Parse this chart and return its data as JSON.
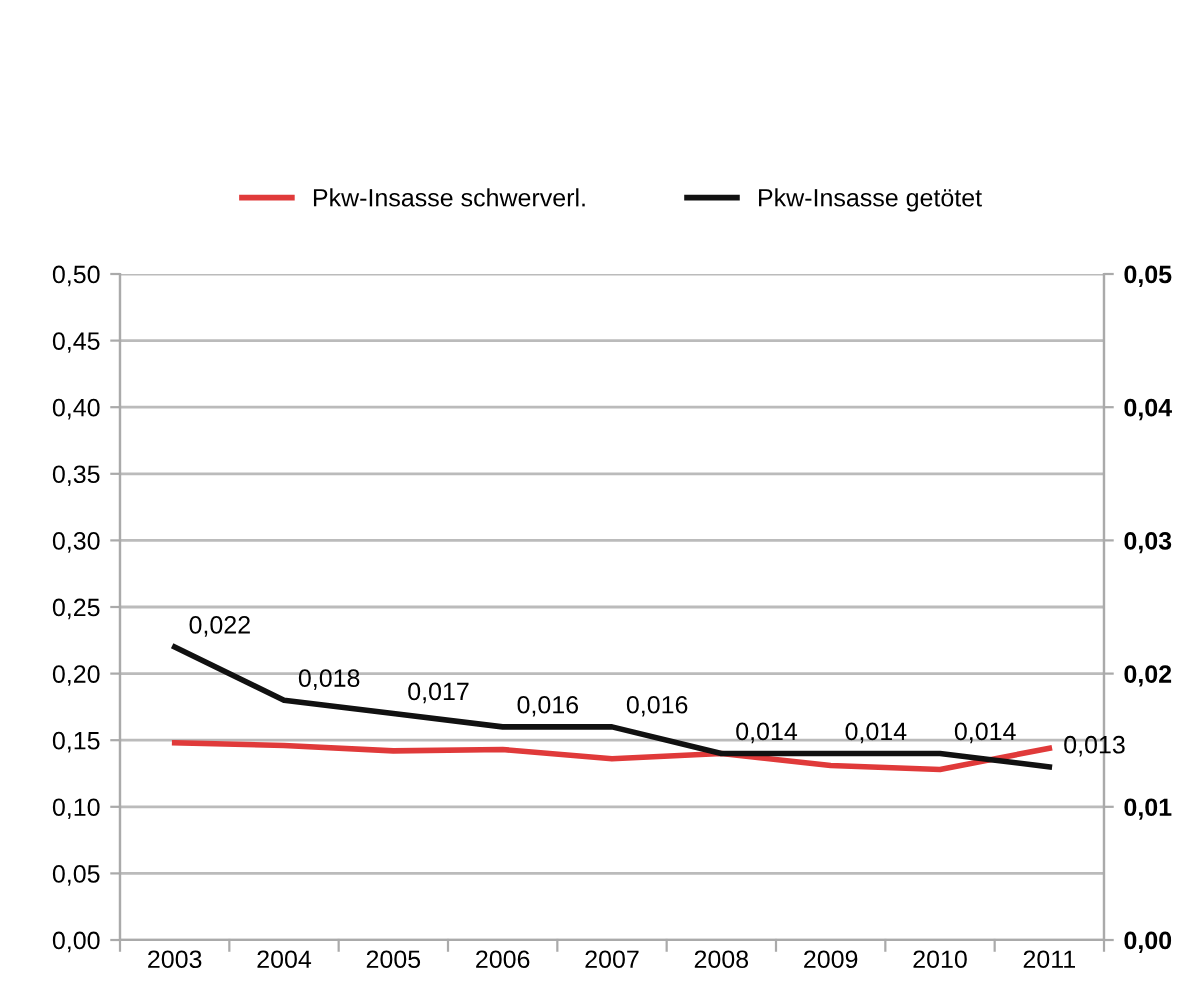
{
  "chart_data": {
    "type": "line",
    "categories": [
      "2003",
      "2004",
      "2005",
      "2006",
      "2007",
      "2008",
      "2009",
      "2010",
      "2011"
    ],
    "series": [
      {
        "name": "Pkw-Insasse schwerverl.",
        "color": "#e03a3a",
        "values": [
          0.148,
          0.146,
          0.142,
          0.143,
          0.136,
          0.14,
          0.131,
          0.128,
          0.144
        ]
      },
      {
        "name": "Pkw-Insasse getötet",
        "color": "#111111",
        "axis": "y2",
        "values": [
          0.022,
          0.018,
          0.017,
          0.016,
          0.016,
          0.014,
          0.014,
          0.014,
          0.013
        ],
        "value_labels": [
          "0,022",
          "0,018",
          "0,017",
          "0,016",
          "0,016",
          "0,014",
          "0,014",
          "0,014",
          "0,013"
        ]
      }
    ],
    "ylim": [
      0,
      0.5
    ],
    "yticks": [
      {
        "value": 0,
        "label": "0,00"
      },
      {
        "value": 0.05,
        "label": "0,05"
      },
      {
        "value": 0.1,
        "label": "0,10"
      },
      {
        "value": 0.15,
        "label": "0,15"
      },
      {
        "value": 0.2,
        "label": "0,20"
      },
      {
        "value": 0.25,
        "label": "0,25"
      },
      {
        "value": 0.3,
        "label": "0,30"
      },
      {
        "value": 0.35,
        "label": "0,35"
      },
      {
        "value": 0.4,
        "label": "0,40"
      },
      {
        "value": 0.45,
        "label": "0,45"
      },
      {
        "value": 0.5,
        "label": "0,50"
      }
    ],
    "y2lim": [
      0,
      0.05
    ],
    "y2ticks": [
      {
        "value": 0,
        "label": "0,00"
      },
      {
        "value": 0.01,
        "label": "0,01"
      },
      {
        "value": 0.02,
        "label": "0,02"
      },
      {
        "value": 0.03,
        "label": "0,03"
      },
      {
        "value": 0.04,
        "label": "0,04"
      },
      {
        "value": 0.05,
        "label": "0,05"
      }
    ],
    "grid": "y",
    "legend": "top",
    "marker": "none",
    "line_style": "solid"
  }
}
